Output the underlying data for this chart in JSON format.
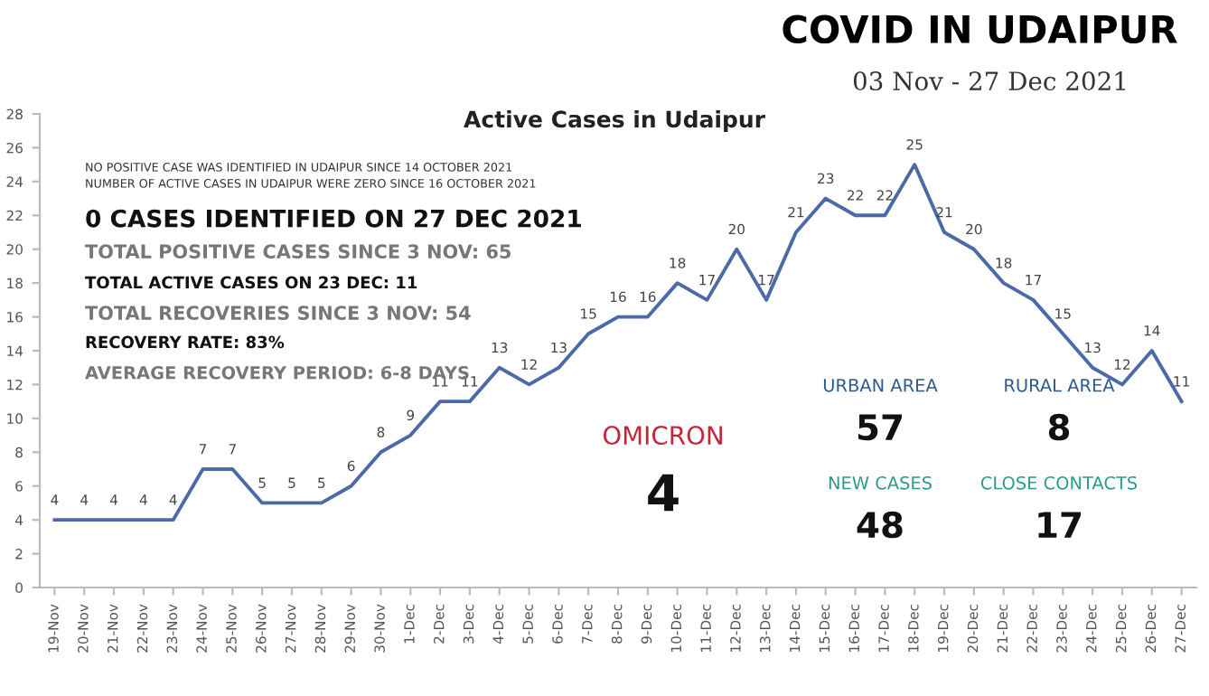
{
  "chart_data": {
    "type": "line",
    "title": "COVID IN UDAIPUR",
    "subtitle": "03 Nov - 27 Dec 2021",
    "categories": [
      "19-Nov",
      "20-Nov",
      "21-Nov",
      "22-Nov",
      "23-Nov",
      "24-Nov",
      "25-Nov",
      "26-Nov",
      "27-Nov",
      "28-Nov",
      "29-Nov",
      "30-Nov",
      "1-Dec",
      "2-Dec",
      "3-Dec",
      "4-Dec",
      "5-Dec",
      "6-Dec",
      "7-Dec",
      "8-Dec",
      "9-Dec",
      "10-Dec",
      "11-Dec",
      "12-Dec",
      "13-Dec",
      "14-Dec",
      "15-Dec",
      "16-Dec",
      "17-Dec",
      "18-Dec",
      "19-Dec",
      "20-Dec",
      "21-Dec",
      "22-Dec",
      "23-Dec",
      "24-Dec",
      "25-Dec",
      "26-Dec",
      "27-Dec"
    ],
    "series": [
      {
        "color": "#4a6aa8",
        "values": [
          4,
          4,
          4,
          4,
          4,
          7,
          7,
          5,
          5,
          5,
          6,
          8,
          9,
          11,
          11,
          13,
          12,
          13,
          15,
          16,
          16,
          18,
          17,
          20,
          17,
          21,
          23,
          22,
          22,
          25,
          21,
          20,
          18,
          17,
          15,
          13,
          12,
          14,
          11
        ]
      }
    ],
    "ylim": [
      0,
      28
    ],
    "yticks": [
      0,
      2,
      4,
      6,
      8,
      10,
      12,
      14,
      16,
      18,
      20,
      22,
      24,
      26,
      28
    ],
    "grid": false,
    "data_labels": true,
    "marker": "none",
    "line_style": "solid",
    "annotations": [
      "Active Cases in Udaipur",
      "NO POSITIVE CASE WAS IDENTIFIED IN UDAIPUR SINCE 14 OCTOBER 2021",
      "NUMBER OF ACTIVE CASES IN UDAIPUR WERE ZERO SINCE 16 OCTOBER 2021",
      "0 CASES IDENTIFIED ON 27 DEC 2021",
      "TOTAL POSITIVE CASES SINCE 3 NOV: 65",
      "TOTAL ACTIVE CASES ON 23 DEC: 11",
      "TOTAL RECOVERIES SINCE 3 NOV: 54",
      "RECOVERY RATE: 83%",
      "AVERAGE RECOVERY PERIOD: 6-8 DAYS",
      "OMICRON",
      "4",
      "URBAN AREA",
      "57",
      "RURAL AREA",
      "8",
      "NEW CASES",
      "48",
      "CLOSE CONTACTS",
      "17"
    ]
  }
}
